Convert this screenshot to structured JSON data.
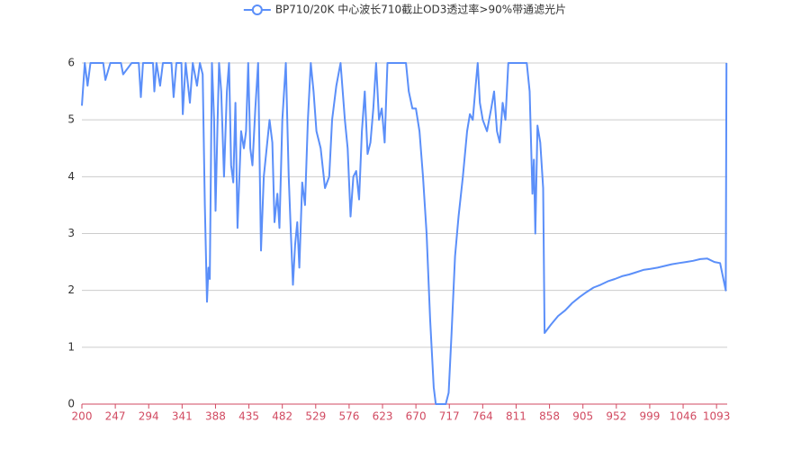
{
  "chart_data": {
    "type": "line",
    "series": [
      {
        "name": "BP710/20K 中心波长710截止OD3透过率>90%带通滤光片",
        "color": "#5b8ff9",
        "x": [
          200,
          204,
          208,
          212,
          230,
          233,
          240,
          255,
          258,
          270,
          280,
          283,
          286,
          300,
          302,
          305,
          310,
          314,
          326,
          329,
          333,
          340,
          342,
          346,
          352,
          356,
          362,
          366,
          370,
          373,
          376,
          378,
          380,
          383,
          386,
          388,
          391,
          393,
          396,
          400,
          404,
          407,
          410,
          413,
          416,
          419,
          424,
          428,
          431,
          434,
          437,
          440,
          444,
          448,
          452,
          456,
          460,
          464,
          468,
          471,
          475,
          478,
          482,
          487,
          491,
          494,
          497,
          500,
          503,
          506,
          510,
          514,
          518,
          522,
          526,
          530,
          536,
          542,
          548,
          552,
          558,
          564,
          570,
          574,
          578,
          582,
          586,
          590,
          594,
          598,
          602,
          606,
          610,
          614,
          618,
          622,
          626,
          630,
          640,
          650,
          656,
          660,
          665,
          670,
          675,
          680,
          685,
          690,
          695,
          698,
          705,
          712,
          716,
          720,
          725,
          730,
          736,
          742,
          746,
          750,
          754,
          757,
          760,
          764,
          770,
          776,
          780,
          784,
          788,
          792,
          796,
          800,
          812,
          820,
          826,
          830,
          834,
          836,
          838,
          841,
          845,
          849,
          851,
          860,
          870,
          880,
          890,
          900,
          910,
          920,
          930,
          940,
          950,
          960,
          970,
          980,
          990,
          1000,
          1010,
          1020,
          1030,
          1040,
          1050,
          1060,
          1070,
          1080,
          1090,
          1098,
          1106,
          1107
        ],
        "values": [
          5.25,
          6,
          5.6,
          6,
          6,
          5.7,
          6,
          6,
          5.8,
          6,
          6,
          5.4,
          6,
          6,
          5.5,
          6,
          5.6,
          6,
          6,
          5.4,
          6,
          6,
          5.1,
          6,
          5.3,
          6,
          5.6,
          6,
          5.8,
          3.5,
          1.8,
          2.4,
          2.2,
          6,
          5.0,
          3.4,
          5.0,
          6,
          5.5,
          4.0,
          5.5,
          6,
          4.2,
          3.9,
          5.3,
          3.1,
          4.8,
          4.5,
          4.8,
          6,
          4.5,
          4.2,
          5.2,
          6,
          2.7,
          4.0,
          4.5,
          5.0,
          4.6,
          3.2,
          3.7,
          3.1,
          5.0,
          6,
          4.0,
          3.0,
          2.1,
          2.8,
          3.2,
          2.4,
          3.9,
          3.5,
          5.0,
          6,
          5.5,
          4.8,
          4.5,
          3.8,
          4.0,
          5.0,
          5.6,
          6,
          5.0,
          4.5,
          3.3,
          4.0,
          4.1,
          3.6,
          4.8,
          5.5,
          4.4,
          4.6,
          5.2,
          6,
          5.0,
          5.2,
          4.6,
          6,
          6,
          6,
          6,
          5.5,
          5.2,
          5.2,
          4.8,
          4.0,
          3.0,
          1.5,
          0.3,
          0,
          0,
          0,
          0.2,
          1.2,
          2.6,
          3.3,
          4.0,
          4.8,
          5.1,
          5.0,
          5.6,
          6,
          5.3,
          5.0,
          4.8,
          5.2,
          5.5,
          4.8,
          4.6,
          5.3,
          5.0,
          6,
          6,
          6,
          6,
          5.5,
          3.7,
          4.3,
          3.0,
          4.9,
          4.6,
          3.8,
          1.25,
          1.4,
          1.55,
          1.65,
          1.78,
          1.88,
          1.97,
          2.05,
          2.1,
          2.16,
          2.2,
          2.25,
          2.28,
          2.32,
          2.36,
          2.38,
          2.4,
          2.43,
          2.46,
          2.48,
          2.5,
          2.52,
          2.55,
          2.56,
          2.5,
          2.48,
          2.0,
          6
        ]
      }
    ],
    "xlim": [
      200,
      1108
    ],
    "xticks": [
      200,
      247,
      294,
      341,
      388,
      435,
      482,
      529,
      576,
      623,
      670,
      717,
      764,
      811,
      858,
      905,
      952,
      999,
      1046,
      1093
    ],
    "ylim": [
      0,
      6
    ],
    "yticks": [
      0,
      1,
      2,
      3,
      4,
      5,
      6
    ],
    "grid": true,
    "axis_color": "#d14a61"
  }
}
